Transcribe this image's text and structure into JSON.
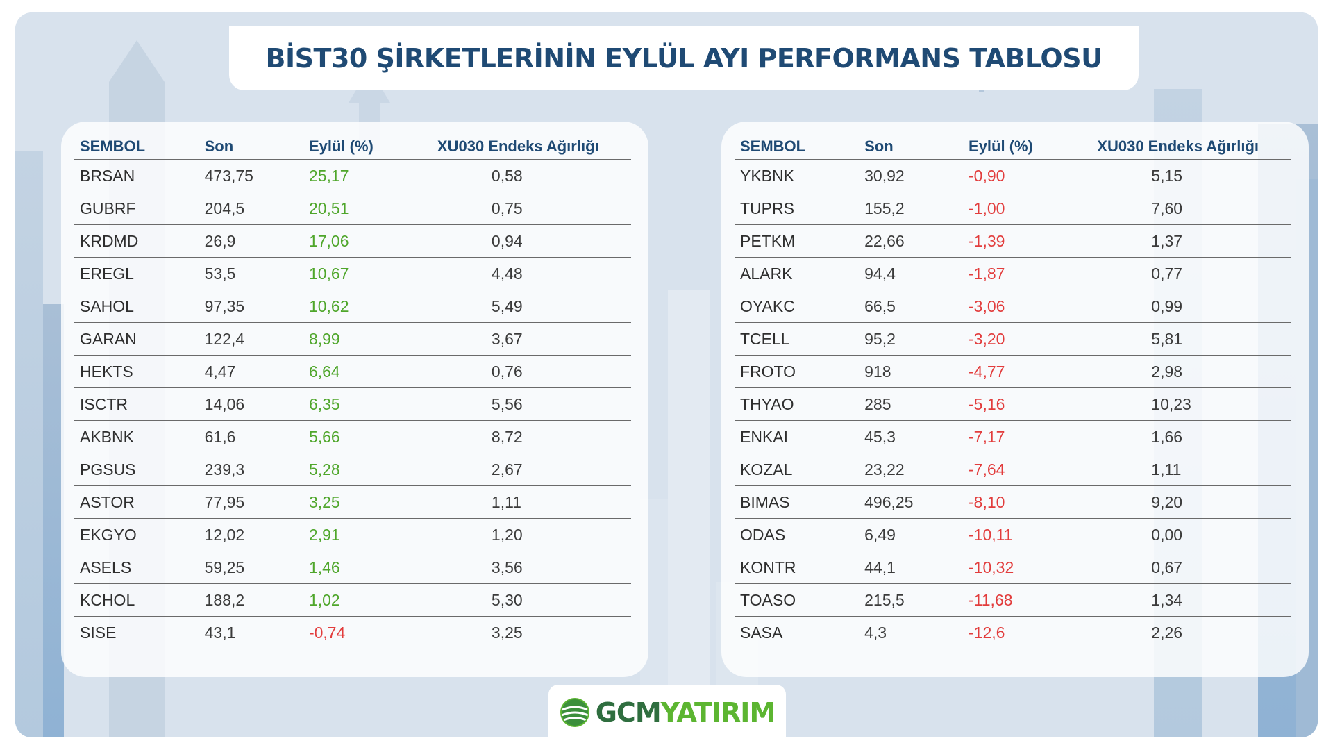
{
  "title": "BİST30 ŞİRKETLERİNİN EYLÜL AYI PERFORMANS TABLOSU",
  "colors": {
    "title": "#1f4a74",
    "positive": "#4fa62b",
    "negative": "#e23c3c",
    "logo_dark": "#2f6e3f",
    "logo_light": "#5cb531"
  },
  "headers": {
    "symbol": "SEMBOL",
    "last": "Son",
    "change": "Eylül (%)",
    "weight": "XU030 Endeks Ağırlığı"
  },
  "left_table": [
    {
      "symbol": "BRSAN",
      "last": "473,75",
      "change": "25,17",
      "weight": "0,58",
      "direction": "pos"
    },
    {
      "symbol": "GUBRF",
      "last": "204,5",
      "change": "20,51",
      "weight": "0,75",
      "direction": "pos"
    },
    {
      "symbol": "KRDMD",
      "last": "26,9",
      "change": "17,06",
      "weight": "0,94",
      "direction": "pos"
    },
    {
      "symbol": "EREGL",
      "last": "53,5",
      "change": "10,67",
      "weight": "4,48",
      "direction": "pos"
    },
    {
      "symbol": "SAHOL",
      "last": "97,35",
      "change": "10,62",
      "weight": "5,49",
      "direction": "pos"
    },
    {
      "symbol": "GARAN",
      "last": "122,4",
      "change": "8,99",
      "weight": "3,67",
      "direction": "pos"
    },
    {
      "symbol": "HEKTS",
      "last": "4,47",
      "change": "6,64",
      "weight": "0,76",
      "direction": "pos"
    },
    {
      "symbol": "ISCTR",
      "last": "14,06",
      "change": "6,35",
      "weight": "5,56",
      "direction": "pos"
    },
    {
      "symbol": "AKBNK",
      "last": "61,6",
      "change": "5,66",
      "weight": "8,72",
      "direction": "pos"
    },
    {
      "symbol": "PGSUS",
      "last": "239,3",
      "change": "5,28",
      "weight": "2,67",
      "direction": "pos"
    },
    {
      "symbol": "ASTOR",
      "last": "77,95",
      "change": "3,25",
      "weight": "1,11",
      "direction": "pos"
    },
    {
      "symbol": "EKGYO",
      "last": "12,02",
      "change": "2,91",
      "weight": "1,20",
      "direction": "pos"
    },
    {
      "symbol": "ASELS",
      "last": "59,25",
      "change": "1,46",
      "weight": "3,56",
      "direction": "pos"
    },
    {
      "symbol": "KCHOL",
      "last": "188,2",
      "change": "1,02",
      "weight": "5,30",
      "direction": "pos"
    },
    {
      "symbol": "SISE",
      "last": "43,1",
      "change": "-0,74",
      "weight": "3,25",
      "direction": "neg"
    }
  ],
  "right_table": [
    {
      "symbol": "YKBNK",
      "last": "30,92",
      "change": "-0,90",
      "weight": "5,15",
      "direction": "neg"
    },
    {
      "symbol": "TUPRS",
      "last": "155,2",
      "change": "-1,00",
      "weight": "7,60",
      "direction": "neg"
    },
    {
      "symbol": "PETKM",
      "last": "22,66",
      "change": "-1,39",
      "weight": "1,37",
      "direction": "neg"
    },
    {
      "symbol": "ALARK",
      "last": "94,4",
      "change": "-1,87",
      "weight": "0,77",
      "direction": "neg"
    },
    {
      "symbol": "OYAKC",
      "last": "66,5",
      "change": "-3,06",
      "weight": "0,99",
      "direction": "neg"
    },
    {
      "symbol": "TCELL",
      "last": "95,2",
      "change": "-3,20",
      "weight": "5,81",
      "direction": "neg"
    },
    {
      "symbol": "FROTO",
      "last": "918",
      "change": "-4,77",
      "weight": "2,98",
      "direction": "neg"
    },
    {
      "symbol": "THYAO",
      "last": "285",
      "change": "-5,16",
      "weight": "10,23",
      "direction": "neg"
    },
    {
      "symbol": "ENKAI",
      "last": "45,3",
      "change": "-7,17",
      "weight": "1,66",
      "direction": "neg"
    },
    {
      "symbol": "KOZAL",
      "last": "23,22",
      "change": "-7,64",
      "weight": "1,11",
      "direction": "neg"
    },
    {
      "symbol": "BIMAS",
      "last": "496,25",
      "change": "-8,10",
      "weight": "9,20",
      "direction": "neg"
    },
    {
      "symbol": "ODAS",
      "last": "6,49",
      "change": "-10,11",
      "weight": "0,00",
      "direction": "neg"
    },
    {
      "symbol": "KONTR",
      "last": "44,1",
      "change": "-10,32",
      "weight": "0,67",
      "direction": "neg"
    },
    {
      "symbol": "TOASO",
      "last": "215,5",
      "change": "-11,68",
      "weight": "1,34",
      "direction": "neg"
    },
    {
      "symbol": "SASA",
      "last": "4,3",
      "change": "-12,6",
      "weight": "2,26",
      "direction": "neg"
    }
  ],
  "logo": {
    "part1": "GCM",
    "part2": "YATIRIM",
    "icon": "globe-icon"
  }
}
